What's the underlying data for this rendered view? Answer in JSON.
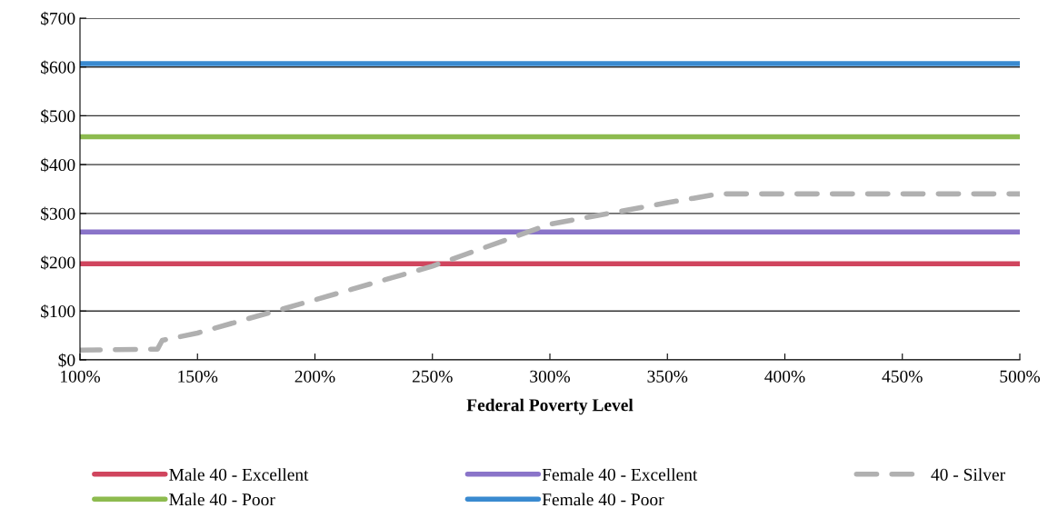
{
  "chart_data": {
    "type": "line",
    "xlabel": "Federal Poverty Level",
    "xlim": [
      100,
      500
    ],
    "xticks": [
      {
        "value": 100,
        "label": "100%"
      },
      {
        "value": 150,
        "label": "150%"
      },
      {
        "value": 200,
        "label": "200%"
      },
      {
        "value": 250,
        "label": "250%"
      },
      {
        "value": 300,
        "label": "300%"
      },
      {
        "value": 350,
        "label": "350%"
      },
      {
        "value": 400,
        "label": "400%"
      },
      {
        "value": 450,
        "label": "450%"
      },
      {
        "value": 500,
        "label": "500%"
      }
    ],
    "ylim": [
      0,
      700
    ],
    "yticks": [
      {
        "value": 0,
        "label": "$0"
      },
      {
        "value": 100,
        "label": "$100"
      },
      {
        "value": 200,
        "label": "$200"
      },
      {
        "value": 300,
        "label": "$300"
      },
      {
        "value": 400,
        "label": "$400"
      },
      {
        "value": 500,
        "label": "$500"
      },
      {
        "value": 600,
        "label": "$600"
      },
      {
        "value": 700,
        "label": "$700"
      }
    ],
    "grid": "y",
    "legend": "bottom",
    "marker": "none",
    "series": [
      {
        "name": "Male 40 - Excellent",
        "color": "#d0455e",
        "x": [
          100,
          500
        ],
        "values": [
          197,
          197
        ]
      },
      {
        "name": "Male 40 - Poor",
        "color": "#8dbb4f",
        "x": [
          100,
          500
        ],
        "values": [
          457,
          457
        ]
      },
      {
        "name": "Female 40 - Excellent",
        "color": "#8a74c9",
        "x": [
          100,
          500
        ],
        "values": [
          262,
          262
        ]
      },
      {
        "name": "Female 40 - Poor",
        "color": "#3a8ad0",
        "x": [
          100,
          500
        ],
        "values": [
          607,
          607
        ]
      },
      {
        "name": "40 - Silver",
        "color": "#b0b0b0",
        "line_style": "dashed",
        "x": [
          100,
          133,
          135,
          150,
          200,
          250,
          300,
          350,
          372,
          500
        ],
        "values": [
          20,
          22,
          40,
          55,
          123,
          192,
          278,
          322,
          340,
          340
        ]
      }
    ]
  }
}
